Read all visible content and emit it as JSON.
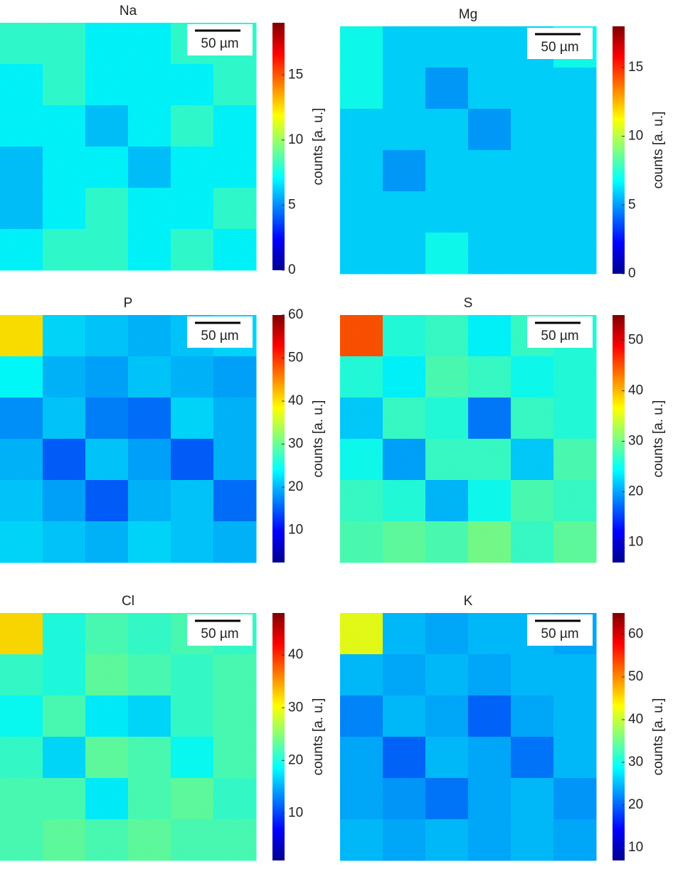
{
  "chart_data": [
    {
      "type": "heatmap",
      "title": "Na",
      "colormap": "jet",
      "clim": [
        0,
        19
      ],
      "colorbar_ticks": [
        0,
        5,
        10,
        15
      ],
      "colorbar_label": "counts [a. u.]",
      "scale_bar": "50 µm",
      "values": [
        [
          8,
          8,
          7,
          7,
          8,
          8
        ],
        [
          7,
          8,
          7,
          7,
          7,
          8
        ],
        [
          7,
          7,
          6,
          7,
          8,
          7
        ],
        [
          6,
          7,
          7,
          6,
          7,
          7
        ],
        [
          6,
          7,
          8,
          7,
          7,
          8
        ],
        [
          7,
          8,
          8,
          7,
          8,
          7
        ]
      ]
    },
    {
      "type": "heatmap",
      "title": "Mg",
      "colormap": "jet",
      "clim": [
        0,
        18
      ],
      "colorbar_ticks": [
        0,
        5,
        10,
        15
      ],
      "colorbar_label": "counts [a. u.]",
      "scale_bar": "50 µm",
      "values": [
        [
          7,
          6,
          6,
          6,
          6,
          7
        ],
        [
          7,
          6,
          5,
          6,
          6,
          6
        ],
        [
          6,
          6,
          6,
          5,
          6,
          6
        ],
        [
          6,
          5,
          6,
          6,
          6,
          6
        ],
        [
          6,
          6,
          6,
          6,
          6,
          6
        ],
        [
          6,
          6,
          7,
          6,
          6,
          6
        ]
      ]
    },
    {
      "type": "heatmap",
      "title": "P",
      "colormap": "jet",
      "clim": [
        2.5,
        60
      ],
      "colorbar_ticks": [
        10,
        20,
        30,
        40,
        50,
        60
      ],
      "colorbar_label": "counts [a. u.]",
      "scale_bar": "50 µm",
      "values": [
        [
          40,
          22,
          21,
          20,
          21,
          22
        ],
        [
          24,
          20,
          19,
          21,
          20,
          19
        ],
        [
          18,
          21,
          17,
          16,
          22,
          20
        ],
        [
          20,
          15,
          21,
          19,
          15,
          20
        ],
        [
          21,
          19,
          15,
          20,
          21,
          16
        ],
        [
          22,
          21,
          20,
          22,
          21,
          20
        ]
      ]
    },
    {
      "type": "heatmap",
      "title": "S",
      "colormap": "jet",
      "clim": [
        6,
        55
      ],
      "colorbar_ticks": [
        10,
        20,
        30,
        40,
        50
      ],
      "colorbar_label": "counts [a. u.]",
      "scale_bar": "50 µm",
      "values": [
        [
          45,
          26,
          27,
          24,
          27,
          26
        ],
        [
          26,
          24,
          28,
          27,
          25,
          26
        ],
        [
          22,
          27,
          26,
          18,
          27,
          26
        ],
        [
          25,
          20,
          27,
          27,
          22,
          28
        ],
        [
          27,
          26,
          21,
          25,
          28,
          27
        ],
        [
          28,
          29,
          28,
          30,
          27,
          29
        ]
      ]
    },
    {
      "type": "heatmap",
      "title": "Cl",
      "colormap": "jet",
      "clim": [
        1,
        48
      ],
      "colorbar_ticks": [
        10,
        20,
        30,
        40
      ],
      "colorbar_label": "counts [a. u.]",
      "scale_bar": "50 µm",
      "values": [
        [
          32,
          20,
          22,
          21,
          22,
          21
        ],
        [
          21,
          20,
          23,
          22,
          21,
          22
        ],
        [
          19,
          22,
          18,
          17,
          21,
          22
        ],
        [
          21,
          17,
          23,
          22,
          19,
          22
        ],
        [
          22,
          22,
          18,
          22,
          23,
          21
        ],
        [
          22,
          23,
          22,
          23,
          22,
          22
        ]
      ]
    },
    {
      "type": "heatmap",
      "title": "K",
      "colormap": "jet",
      "clim": [
        7,
        65
      ],
      "colorbar_ticks": [
        10,
        20,
        30,
        40,
        50,
        60
      ],
      "colorbar_label": "counts [a. u.]",
      "scale_bar": "50 µm",
      "values": [
        [
          42,
          25,
          24,
          25,
          25,
          24
        ],
        [
          25,
          24,
          25,
          24,
          25,
          25
        ],
        [
          22,
          25,
          24,
          20,
          24,
          25
        ],
        [
          24,
          20,
          25,
          24,
          21,
          25
        ],
        [
          24,
          23,
          21,
          24,
          25,
          23
        ],
        [
          25,
          24,
          25,
          24,
          25,
          24
        ]
      ]
    }
  ]
}
